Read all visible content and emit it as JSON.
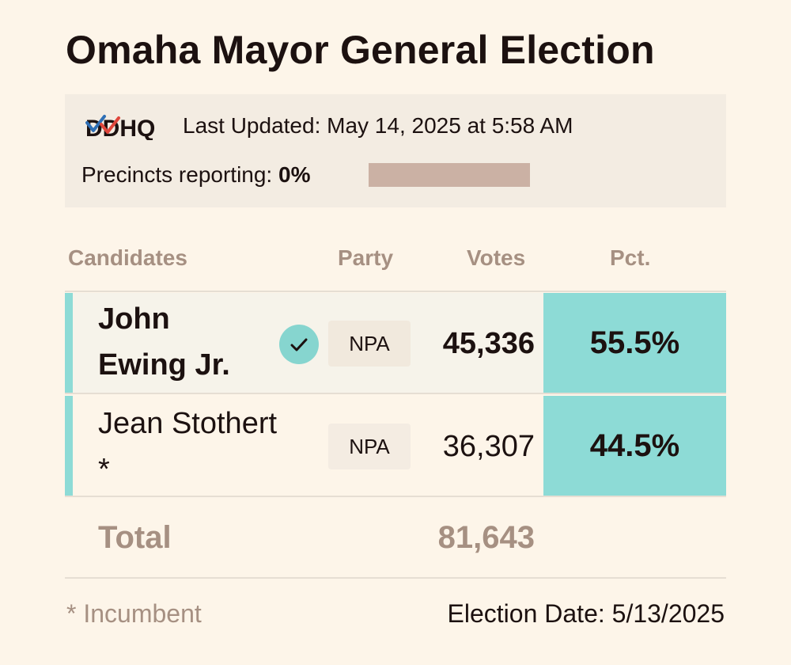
{
  "title": "Omaha Mayor General Election",
  "source": {
    "logo_text": "DDHQ",
    "last_updated": "Last Updated: May 14, 2025 at 5:58 AM"
  },
  "precincts": {
    "label": "Precincts reporting:",
    "value": "0%",
    "fraction": 0
  },
  "columns": {
    "candidates": "Candidates",
    "party": "Party",
    "votes": "Votes",
    "pct": "Pct."
  },
  "candidates": [
    {
      "name_line1": "John",
      "name_line2": "Ewing Jr.",
      "winner": true,
      "party": "NPA",
      "votes": "45,336",
      "pct": "55.5%"
    },
    {
      "name_line1": "Jean Stothert",
      "name_line2": "*",
      "winner": false,
      "party": "NPA",
      "votes": "36,307",
      "pct": "44.5%"
    }
  ],
  "total": {
    "label": "Total",
    "votes": "81,643"
  },
  "footnote": "* Incumbent",
  "election_date": "Election Date: 5/13/2025",
  "colors": {
    "background": "#fdf5e9",
    "accent_teal": "#8ddbd6",
    "muted_text": "#a69082",
    "progress_track": "#cbb1a4"
  },
  "icons": {
    "winner": "checkmark-icon",
    "logo": "ddhq-checkmark-logo"
  }
}
